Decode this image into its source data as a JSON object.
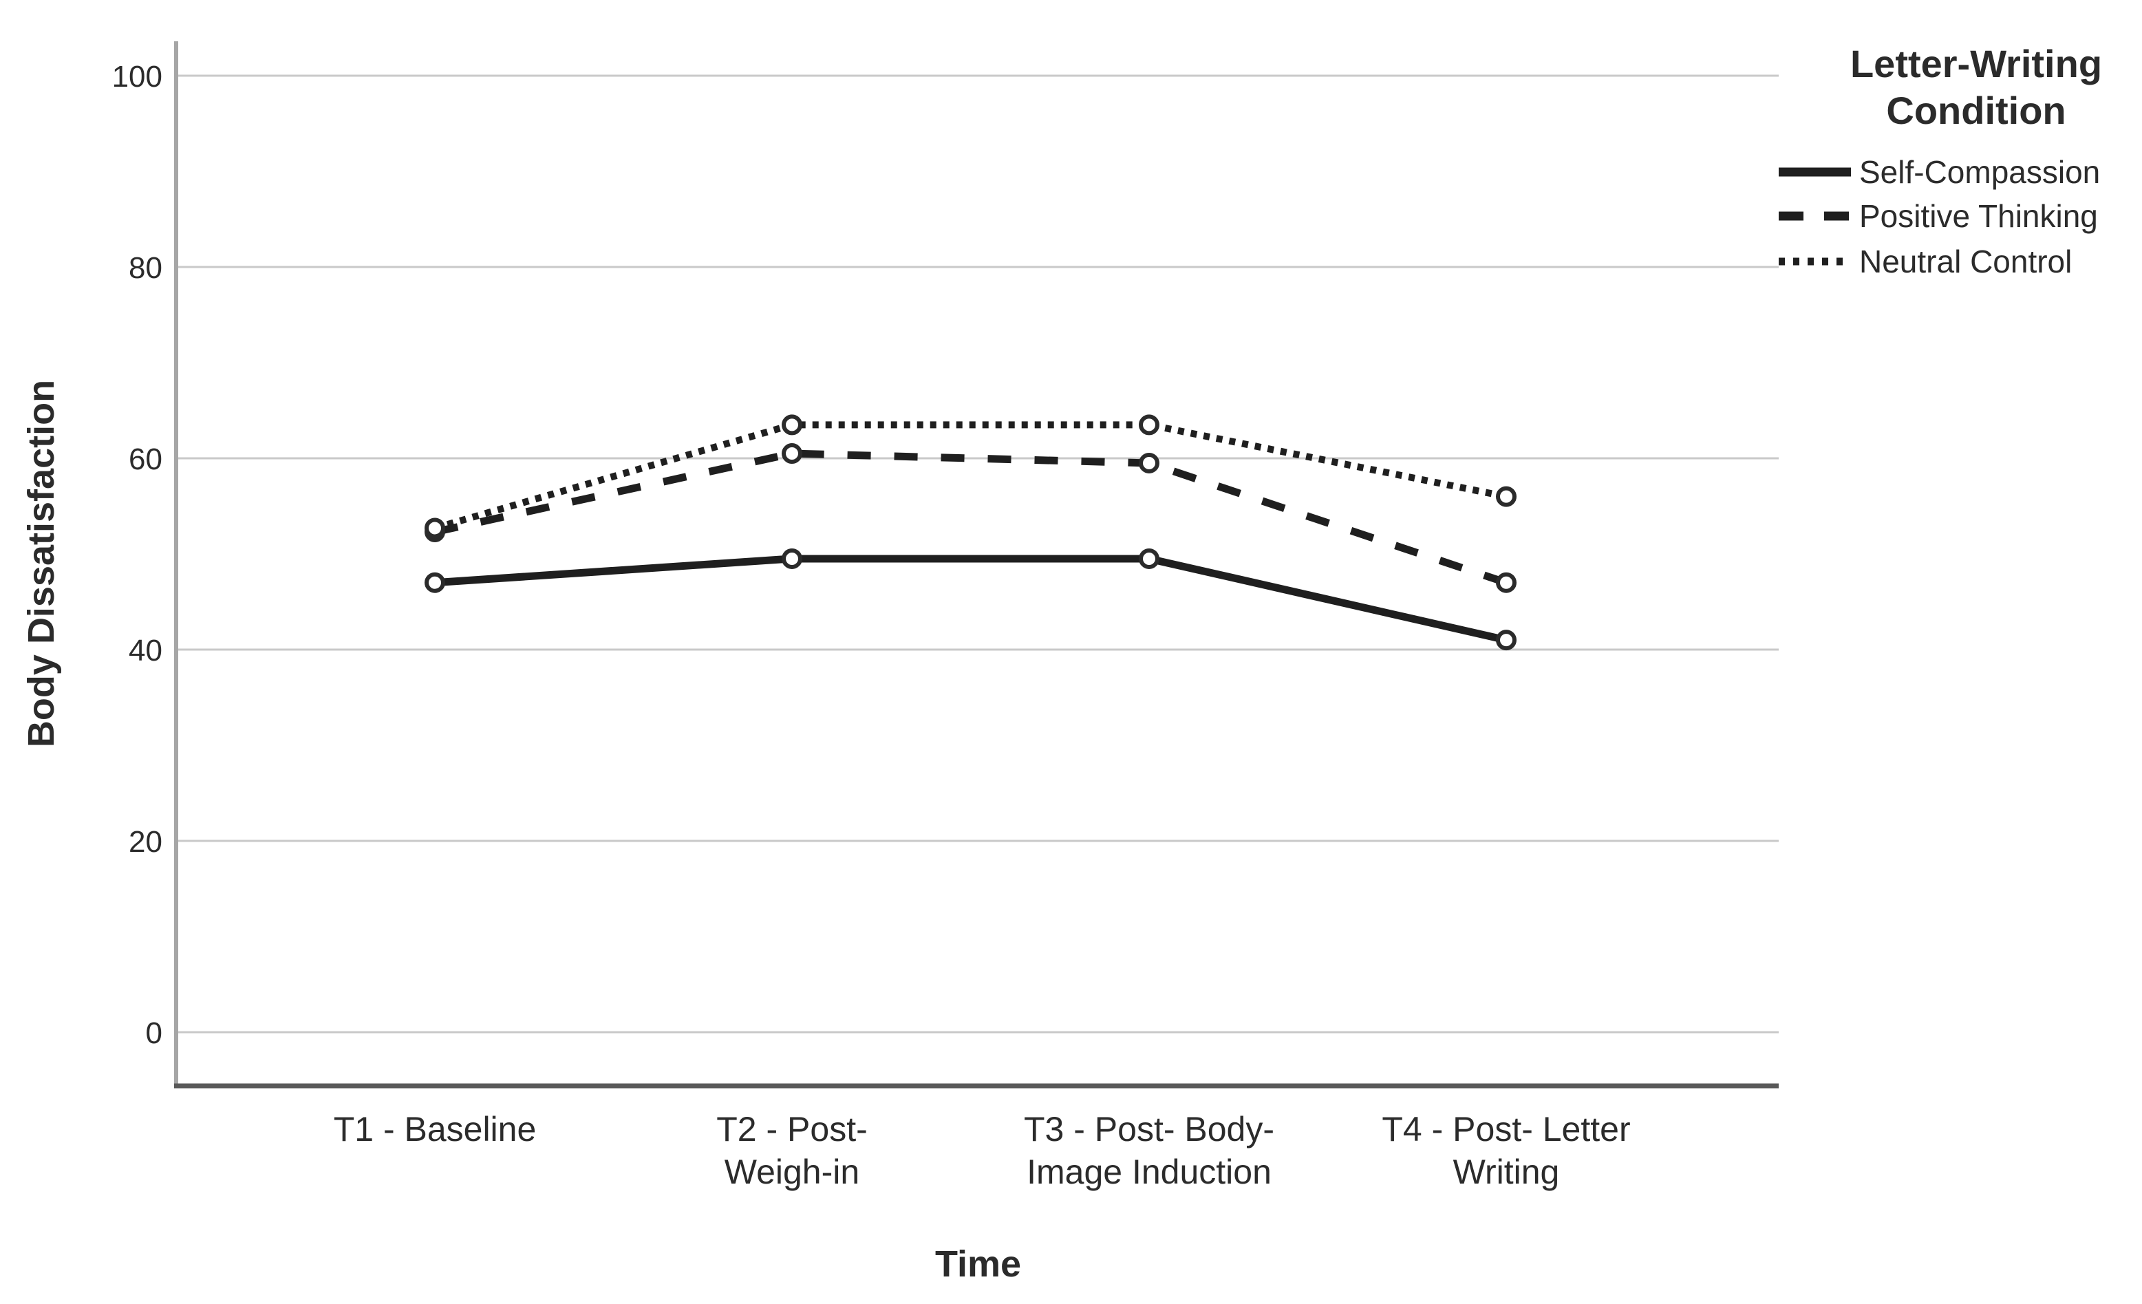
{
  "chart_data": {
    "type": "line",
    "title": "",
    "xlabel": "Time",
    "ylabel": "Body Dissatisfaction",
    "ylim": [
      0,
      100
    ],
    "yticks": [
      0,
      20,
      40,
      60,
      80,
      100
    ],
    "grid": true,
    "legend_position": "outside-right-top",
    "legend_title": "Letter-Writing\nCondition",
    "marker": "open-circle",
    "categories": [
      "T1 - Baseline",
      "T2 - Post-\nWeigh-in",
      "T3 - Post- Body-\nImage Induction",
      "T4 - Post- Letter\nWriting"
    ],
    "series": [
      {
        "name": "Self-Compassion",
        "line_style": "solid",
        "values": [
          47.0,
          49.5,
          49.5,
          41.0
        ]
      },
      {
        "name": "Positive Thinking",
        "line_style": "dashed",
        "values": [
          52.3,
          60.5,
          59.5,
          47.0
        ]
      },
      {
        "name": "Neutral Control",
        "line_style": "dotted",
        "values": [
          52.7,
          63.5,
          63.5,
          56.0
        ]
      }
    ],
    "colors": {
      "line": "#1f1f1f",
      "marker_stroke": "#2b2b2b",
      "marker_fill": "#ffffff",
      "grid": "#c9c9c9",
      "y_axis": "#a6a6a6",
      "x_axis": "#595959",
      "text": "#2b2b2b"
    }
  }
}
